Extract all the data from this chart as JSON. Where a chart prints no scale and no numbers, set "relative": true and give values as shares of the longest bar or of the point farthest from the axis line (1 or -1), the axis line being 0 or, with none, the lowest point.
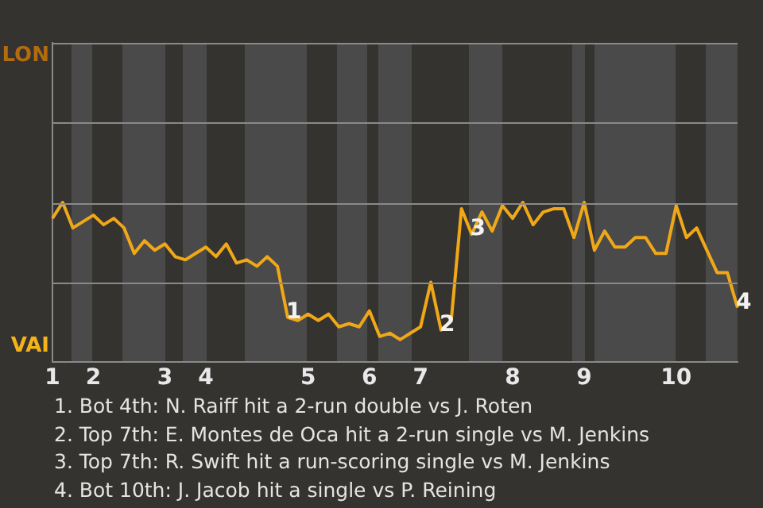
{
  "chart_data": {
    "type": "line",
    "categories": [
      "1",
      null,
      null,
      null,
      "2",
      null,
      null,
      null,
      null,
      null,
      null,
      "3",
      null,
      null,
      null,
      "4",
      null,
      null,
      null,
      null,
      null,
      null,
      null,
      null,
      null,
      "5",
      null,
      null,
      null,
      null,
      null,
      "6",
      null,
      null,
      null,
      null,
      "7",
      null,
      null,
      null,
      null,
      null,
      null,
      null,
      null,
      "8",
      null,
      null,
      null,
      null,
      null,
      null,
      "9",
      null,
      null,
      null,
      null,
      null,
      null,
      null,
      null,
      "10",
      null,
      null,
      null,
      null,
      null,
      null
    ],
    "series": [
      {
        "color": "#f0a818",
        "values": [
          0.9,
          1,
          0.84,
          0.88,
          0.92,
          0.86,
          0.9,
          0.84,
          0.68,
          0.76,
          0.7,
          0.74,
          0.66,
          0.64,
          0.68,
          0.72,
          0.66,
          0.74,
          0.62,
          0.64,
          0.6,
          0.66,
          0.6,
          0.28,
          0.26,
          0.3,
          0.26,
          0.3,
          0.22,
          0.24,
          0.22,
          0.32,
          0.16,
          0.18,
          0.14,
          0.18,
          0.22,
          0.5,
          0.2,
          0.26,
          0.96,
          0.8,
          0.94,
          0.82,
          0.98,
          0.9,
          1,
          0.86,
          0.94,
          0.96,
          0.96,
          0.78,
          1,
          0.7,
          0.82,
          0.72,
          0.72,
          0.78,
          0.78,
          0.68,
          0.68,
          0.98,
          0.78,
          0.84,
          0.7,
          0.56,
          0.56,
          0.34
        ]
      }
    ],
    "relative": true,
    "ref_lines": [
      {
        "axis": "y",
        "value": 0.5,
        "color": "#8a8a8a"
      },
      {
        "axis": "y",
        "value": 1,
        "color": "#8a8a8a"
      },
      {
        "axis": "y",
        "value": 1.5,
        "color": "#8a8a8a"
      },
      {
        "axis": "y",
        "value": 2,
        "color": "#8a8a8a"
      }
    ],
    "legend": false,
    "marker": "none",
    "line_style": "solid",
    "annotations": [
      {
        "text": "1",
        "y": 0.28
      },
      {
        "text": "2",
        "y": 0.2
      },
      {
        "text": "3",
        "y": 0.8
      },
      {
        "text": "4",
        "y": 0.34
      },
      "LON",
      "VAI",
      "1. Bot 4th: N. Raiff hit a 2-run double vs J. Roten",
      "2. Top 7th: E. Montes de Oca hit a 2-run single vs M. Jenkins",
      "3. Top 7th: R. Swift hit a run-scoring single vs M. Jenkins",
      "4. Bot 10th: J. Jacob hit a single vs P. Reining"
    ]
  }
}
